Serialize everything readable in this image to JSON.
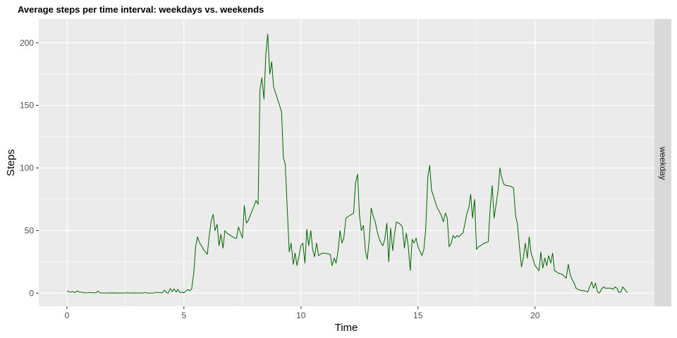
{
  "chart_data": {
    "type": "line",
    "title": "Average steps per time interval: weekdays vs. weekends",
    "xlabel": "Time",
    "ylabel": "Steps",
    "xlim": [
      -1.2,
      25.1
    ],
    "ylim": [
      -10.5,
      219
    ],
    "x_ticks": [
      0,
      5,
      10,
      15,
      20
    ],
    "y_ticks": [
      0,
      50,
      100,
      150,
      200
    ],
    "grid": true,
    "facet_label": "weekday",
    "series": [
      {
        "color": "#006400",
        "points": [
          [
            0.0,
            1.8
          ],
          [
            0.15,
            0.8
          ],
          [
            0.25,
            1.2
          ],
          [
            0.35,
            0.4
          ],
          [
            0.45,
            1.9
          ],
          [
            0.55,
            0.6
          ],
          [
            0.65,
            0.9
          ],
          [
            0.75,
            0.2
          ],
          [
            0.85,
            0.3
          ],
          [
            1.0,
            0.5
          ],
          [
            1.25,
            0.2
          ],
          [
            1.33,
            1.7
          ],
          [
            1.42,
            0.2
          ],
          [
            1.7,
            0.1
          ],
          [
            2.0,
            0.2
          ],
          [
            2.2,
            0.1
          ],
          [
            2.5,
            0.1
          ],
          [
            2.58,
            0.4
          ],
          [
            2.67,
            0.1
          ],
          [
            2.9,
            0.2
          ],
          [
            3.0,
            0.1
          ],
          [
            3.25,
            0.1
          ],
          [
            3.33,
            0.5
          ],
          [
            3.42,
            0.1
          ],
          [
            3.75,
            0.2
          ],
          [
            3.83,
            0.8
          ],
          [
            3.92,
            0.3
          ],
          [
            4.0,
            0.5
          ],
          [
            4.08,
            0.2
          ],
          [
            4.17,
            2.5
          ],
          [
            4.25,
            0.3
          ],
          [
            4.33,
            0.2
          ],
          [
            4.42,
            3.8
          ],
          [
            4.5,
            1.2
          ],
          [
            4.58,
            3.5
          ],
          [
            4.67,
            0.8
          ],
          [
            4.75,
            3.1
          ],
          [
            4.83,
            0.5
          ],
          [
            4.92,
            0.9
          ],
          [
            5.0,
            0.3
          ],
          [
            5.08,
            1.6
          ],
          [
            5.17,
            2.9
          ],
          [
            5.25,
            2.0
          ],
          [
            5.33,
            3.3
          ],
          [
            5.42,
            16
          ],
          [
            5.5,
            37
          ],
          [
            5.58,
            45
          ],
          [
            5.67,
            40
          ],
          [
            5.75,
            38
          ],
          [
            5.83,
            35
          ],
          [
            5.92,
            33
          ],
          [
            6.0,
            31
          ],
          [
            6.08,
            46
          ],
          [
            6.17,
            58
          ],
          [
            6.25,
            63
          ],
          [
            6.33,
            50
          ],
          [
            6.42,
            55
          ],
          [
            6.5,
            38
          ],
          [
            6.58,
            47
          ],
          [
            6.67,
            36
          ],
          [
            6.75,
            50
          ],
          [
            6.83,
            48
          ],
          [
            6.92,
            47
          ],
          [
            7.0,
            46
          ],
          [
            7.08,
            45
          ],
          [
            7.17,
            44
          ],
          [
            7.25,
            44
          ],
          [
            7.33,
            53
          ],
          [
            7.42,
            48
          ],
          [
            7.5,
            44
          ],
          [
            7.58,
            70
          ],
          [
            7.67,
            56
          ],
          [
            7.75,
            58
          ],
          [
            7.83,
            62
          ],
          [
            7.92,
            66
          ],
          [
            8.0,
            70
          ],
          [
            8.08,
            74
          ],
          [
            8.17,
            71
          ],
          [
            8.25,
            163
          ],
          [
            8.33,
            172
          ],
          [
            8.42,
            155
          ],
          [
            8.5,
            191
          ],
          [
            8.58,
            207
          ],
          [
            8.67,
            175
          ],
          [
            8.75,
            185
          ],
          [
            8.83,
            165
          ],
          [
            9.0,
            155
          ],
          [
            9.17,
            145
          ],
          [
            9.25,
            108
          ],
          [
            9.33,
            103
          ],
          [
            9.42,
            65
          ],
          [
            9.5,
            33
          ],
          [
            9.58,
            40
          ],
          [
            9.67,
            23
          ],
          [
            9.75,
            32
          ],
          [
            9.83,
            22
          ],
          [
            9.92,
            30
          ],
          [
            10.0,
            38
          ],
          [
            10.08,
            40
          ],
          [
            10.17,
            24
          ],
          [
            10.25,
            51
          ],
          [
            10.33,
            38
          ],
          [
            10.42,
            50
          ],
          [
            10.5,
            35
          ],
          [
            10.58,
            29
          ],
          [
            10.67,
            40
          ],
          [
            10.75,
            30
          ],
          [
            10.83,
            31
          ],
          [
            10.92,
            32
          ],
          [
            11.0,
            32
          ],
          [
            11.25,
            31
          ],
          [
            11.33,
            22
          ],
          [
            11.42,
            28
          ],
          [
            11.5,
            24
          ],
          [
            11.58,
            33
          ],
          [
            11.67,
            50
          ],
          [
            11.75,
            40
          ],
          [
            11.83,
            44
          ],
          [
            11.92,
            60
          ],
          [
            12.0,
            61
          ],
          [
            12.08,
            62
          ],
          [
            12.17,
            63
          ],
          [
            12.25,
            64
          ],
          [
            12.33,
            88
          ],
          [
            12.42,
            95
          ],
          [
            12.5,
            62
          ],
          [
            12.58,
            50
          ],
          [
            12.67,
            54
          ],
          [
            12.75,
            34
          ],
          [
            12.83,
            27
          ],
          [
            12.92,
            43
          ],
          [
            13.0,
            68
          ],
          [
            13.08,
            62
          ],
          [
            13.17,
            57
          ],
          [
            13.25,
            50
          ],
          [
            13.33,
            44
          ],
          [
            13.42,
            40
          ],
          [
            13.5,
            38
          ],
          [
            13.58,
            43
          ],
          [
            13.67,
            56
          ],
          [
            13.75,
            25
          ],
          [
            13.83,
            52
          ],
          [
            13.92,
            34
          ],
          [
            14.0,
            48
          ],
          [
            14.08,
            57
          ],
          [
            14.17,
            56
          ],
          [
            14.25,
            55
          ],
          [
            14.33,
            53
          ],
          [
            14.42,
            36
          ],
          [
            14.5,
            48
          ],
          [
            14.58,
            38
          ],
          [
            14.67,
            18
          ],
          [
            14.75,
            43
          ],
          [
            14.83,
            40
          ],
          [
            14.92,
            44
          ],
          [
            15.0,
            37
          ],
          [
            15.17,
            30
          ],
          [
            15.25,
            35
          ],
          [
            15.33,
            51
          ],
          [
            15.42,
            93
          ],
          [
            15.5,
            102
          ],
          [
            15.58,
            82
          ],
          [
            15.67,
            77
          ],
          [
            15.75,
            72
          ],
          [
            15.83,
            68
          ],
          [
            16.0,
            62
          ],
          [
            16.08,
            57
          ],
          [
            16.17,
            64
          ],
          [
            16.25,
            60
          ],
          [
            16.33,
            37
          ],
          [
            16.42,
            40
          ],
          [
            16.5,
            46
          ],
          [
            16.58,
            44
          ],
          [
            16.67,
            46
          ],
          [
            16.75,
            45
          ],
          [
            16.83,
            47
          ],
          [
            16.92,
            48
          ],
          [
            17.0,
            55
          ],
          [
            17.08,
            63
          ],
          [
            17.17,
            68
          ],
          [
            17.25,
            79
          ],
          [
            17.33,
            60
          ],
          [
            17.42,
            75
          ],
          [
            17.5,
            35
          ],
          [
            17.58,
            37
          ],
          [
            17.67,
            38
          ],
          [
            17.75,
            39
          ],
          [
            17.83,
            40
          ],
          [
            18.0,
            41
          ],
          [
            18.08,
            67
          ],
          [
            18.17,
            86
          ],
          [
            18.25,
            60
          ],
          [
            18.33,
            70
          ],
          [
            18.42,
            82
          ],
          [
            18.5,
            100
          ],
          [
            18.58,
            92
          ],
          [
            18.67,
            87
          ],
          [
            18.75,
            86
          ],
          [
            18.83,
            86
          ],
          [
            19.0,
            85
          ],
          [
            19.08,
            84
          ],
          [
            19.17,
            62
          ],
          [
            19.25,
            55
          ],
          [
            19.33,
            38
          ],
          [
            19.42,
            21
          ],
          [
            19.5,
            28
          ],
          [
            19.58,
            40
          ],
          [
            19.67,
            28
          ],
          [
            19.75,
            45
          ],
          [
            19.83,
            32
          ],
          [
            19.92,
            27
          ],
          [
            20.0,
            22
          ],
          [
            20.08,
            20
          ],
          [
            20.17,
            18
          ],
          [
            20.25,
            33
          ],
          [
            20.33,
            20
          ],
          [
            20.42,
            28
          ],
          [
            20.5,
            22
          ],
          [
            20.58,
            30
          ],
          [
            20.67,
            24
          ],
          [
            20.75,
            32
          ],
          [
            20.83,
            18
          ],
          [
            20.92,
            17
          ],
          [
            21.0,
            16
          ],
          [
            21.17,
            15
          ],
          [
            21.33,
            12
          ],
          [
            21.42,
            23
          ],
          [
            21.5,
            15
          ],
          [
            21.58,
            11
          ],
          [
            21.67,
            8
          ],
          [
            21.75,
            4
          ],
          [
            21.83,
            3
          ],
          [
            22.0,
            2
          ],
          [
            22.08,
            2
          ],
          [
            22.25,
            1
          ],
          [
            22.33,
            5
          ],
          [
            22.42,
            9
          ],
          [
            22.5,
            4
          ],
          [
            22.58,
            8
          ],
          [
            22.67,
            1
          ],
          [
            22.75,
            0
          ],
          [
            22.83,
            3
          ],
          [
            22.92,
            5
          ],
          [
            23.0,
            4
          ],
          [
            23.25,
            4
          ],
          [
            23.33,
            3
          ],
          [
            23.42,
            5
          ],
          [
            23.5,
            4
          ],
          [
            23.58,
            0.5
          ],
          [
            23.67,
            1
          ],
          [
            23.75,
            5
          ],
          [
            23.83,
            3
          ],
          [
            23.92,
            1
          ],
          [
            23.95,
            0.5
          ]
        ]
      }
    ]
  }
}
